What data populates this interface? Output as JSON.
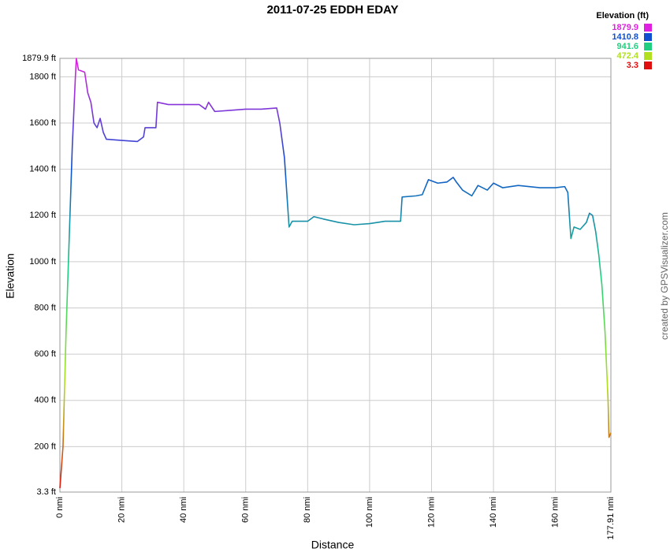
{
  "chart_data": {
    "type": "line",
    "title": "2011-07-25 EDDH EDAY",
    "x_label": "Distance",
    "y_label": "Elevation",
    "credit": "created by GPSVisualizer.com",
    "legend_title": "Elevation (ft)",
    "color_scale": [
      {
        "value": 1879.9,
        "color": "#e020e0"
      },
      {
        "value": 1410.8,
        "color": "#1050d0"
      },
      {
        "value": 941.6,
        "color": "#20d080"
      },
      {
        "value": 472.4,
        "color": "#b0e020"
      },
      {
        "value": 3.3,
        "color": "#e01010"
      }
    ],
    "x": [
      0,
      1,
      1.5,
      2,
      3,
      4,
      5,
      5.3,
      6,
      8,
      9,
      10,
      11,
      12,
      13,
      14,
      15,
      20,
      25,
      27,
      27.5,
      31,
      31.5,
      35,
      40,
      45,
      47,
      48,
      50,
      55,
      60,
      65,
      70,
      71,
      72.5,
      73.5,
      74,
      75,
      80,
      82,
      85,
      90,
      95,
      100,
      105,
      110,
      110.5,
      115,
      117,
      119,
      122,
      125,
      127,
      128,
      130,
      133,
      135,
      138,
      140,
      143,
      148,
      155,
      160,
      163,
      164,
      165,
      166,
      168,
      170,
      171,
      172,
      173,
      174,
      175,
      176,
      177,
      177.3,
      177.91
    ],
    "values": [
      20,
      200,
      450,
      700,
      1100,
      1500,
      1800,
      1879.9,
      1830,
      1820,
      1730,
      1690,
      1600,
      1580,
      1620,
      1560,
      1530,
      1525,
      1520,
      1540,
      1580,
      1580,
      1690,
      1680,
      1680,
      1680,
      1660,
      1690,
      1650,
      1655,
      1660,
      1660,
      1665,
      1600,
      1450,
      1250,
      1150,
      1175,
      1175,
      1195,
      1185,
      1170,
      1160,
      1165,
      1175,
      1175,
      1280,
      1285,
      1290,
      1355,
      1340,
      1345,
      1365,
      1345,
      1310,
      1285,
      1330,
      1310,
      1340,
      1320,
      1330,
      1320,
      1320,
      1325,
      1300,
      1100,
      1150,
      1140,
      1170,
      1210,
      1200,
      1130,
      1030,
      900,
      700,
      400,
      240,
      260
    ],
    "xlim": [
      0,
      177.91
    ],
    "xticks": [
      {
        "value": 0,
        "label": "0 nmi"
      },
      {
        "value": 20,
        "label": "20 nmi"
      },
      {
        "value": 40,
        "label": "40 nmi"
      },
      {
        "value": 60,
        "label": "60 nmi"
      },
      {
        "value": 80,
        "label": "80 nmi"
      },
      {
        "value": 100,
        "label": "100 nmi"
      },
      {
        "value": 120,
        "label": "120 nmi"
      },
      {
        "value": 140,
        "label": "140 nmi"
      },
      {
        "value": 160,
        "label": "160 nmi"
      },
      {
        "value": 177.91,
        "label": "177.91 nmi"
      }
    ],
    "ylim": [
      3.3,
      1879.9
    ],
    "yticks": [
      {
        "value": 3.3,
        "label": "3.3 ft"
      },
      {
        "value": 200,
        "label": "200 ft"
      },
      {
        "value": 400,
        "label": "400 ft"
      },
      {
        "value": 600,
        "label": "600 ft"
      },
      {
        "value": 800,
        "label": "800 ft"
      },
      {
        "value": 1000,
        "label": "1000 ft"
      },
      {
        "value": 1200,
        "label": "1200 ft"
      },
      {
        "value": 1400,
        "label": "1400 ft"
      },
      {
        "value": 1600,
        "label": "1600 ft"
      },
      {
        "value": 1800,
        "label": "1800 ft"
      },
      {
        "value": 1879.9,
        "label": "1879.9 ft"
      }
    ],
    "grid": true
  }
}
